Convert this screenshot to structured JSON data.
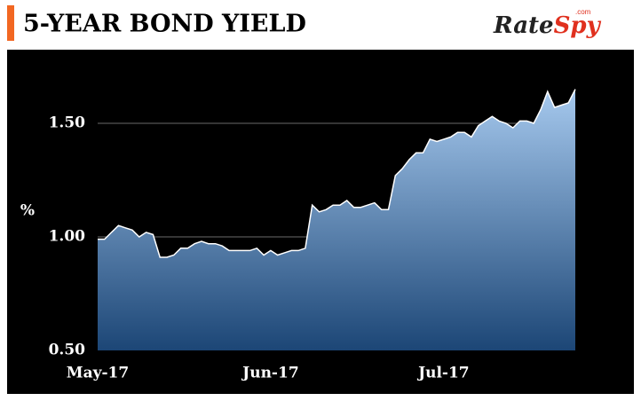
{
  "brand": {
    "name": [
      "Rate",
      "Spy"
    ],
    "suffix": ".com"
  },
  "chart_data": {
    "type": "area",
    "title": "5-YEAR BOND YIELD",
    "y_label": "%",
    "categories": [
      "May-17",
      null,
      null,
      null,
      null,
      null,
      null,
      null,
      null,
      null,
      null,
      null,
      null,
      null,
      null,
      null,
      null,
      null,
      null,
      null,
      null,
      null,
      null,
      null,
      null,
      "Jun-17",
      null,
      null,
      null,
      null,
      null,
      null,
      null,
      null,
      null,
      null,
      null,
      null,
      null,
      null,
      null,
      null,
      null,
      null,
      null,
      null,
      null,
      null,
      null,
      null,
      "Jul-17",
      null,
      null,
      null,
      null,
      null,
      null,
      null,
      null,
      null,
      null,
      null,
      null,
      null,
      null,
      null,
      null,
      null,
      null,
      null
    ],
    "values": [
      0.99,
      0.99,
      1.02,
      1.05,
      1.04,
      1.03,
      1.0,
      1.02,
      1.01,
      0.91,
      0.91,
      0.92,
      0.95,
      0.95,
      0.97,
      0.98,
      0.97,
      0.97,
      0.96,
      0.94,
      0.94,
      0.94,
      0.94,
      0.95,
      0.92,
      0.94,
      0.92,
      0.93,
      0.94,
      0.94,
      0.95,
      1.14,
      1.11,
      1.12,
      1.14,
      1.14,
      1.16,
      1.13,
      1.13,
      1.14,
      1.15,
      1.12,
      1.12,
      1.27,
      1.3,
      1.34,
      1.37,
      1.37,
      1.43,
      1.42,
      1.43,
      1.44,
      1.46,
      1.46,
      1.44,
      1.49,
      1.51,
      1.53,
      1.51,
      1.5,
      1.48,
      1.51,
      1.51,
      1.5,
      1.56,
      1.64,
      1.57,
      1.58,
      1.59,
      1.65
    ],
    "color": "#a6c9ee",
    "line_color": "#ffffff",
    "ylim": [
      0.5,
      1.75
    ],
    "yticks": [
      {
        "value": 0.5,
        "label": "0.50"
      },
      {
        "value": 1.0,
        "label": "1.00"
      },
      {
        "value": 1.5,
        "label": "1.50"
      }
    ],
    "grid": true
  }
}
